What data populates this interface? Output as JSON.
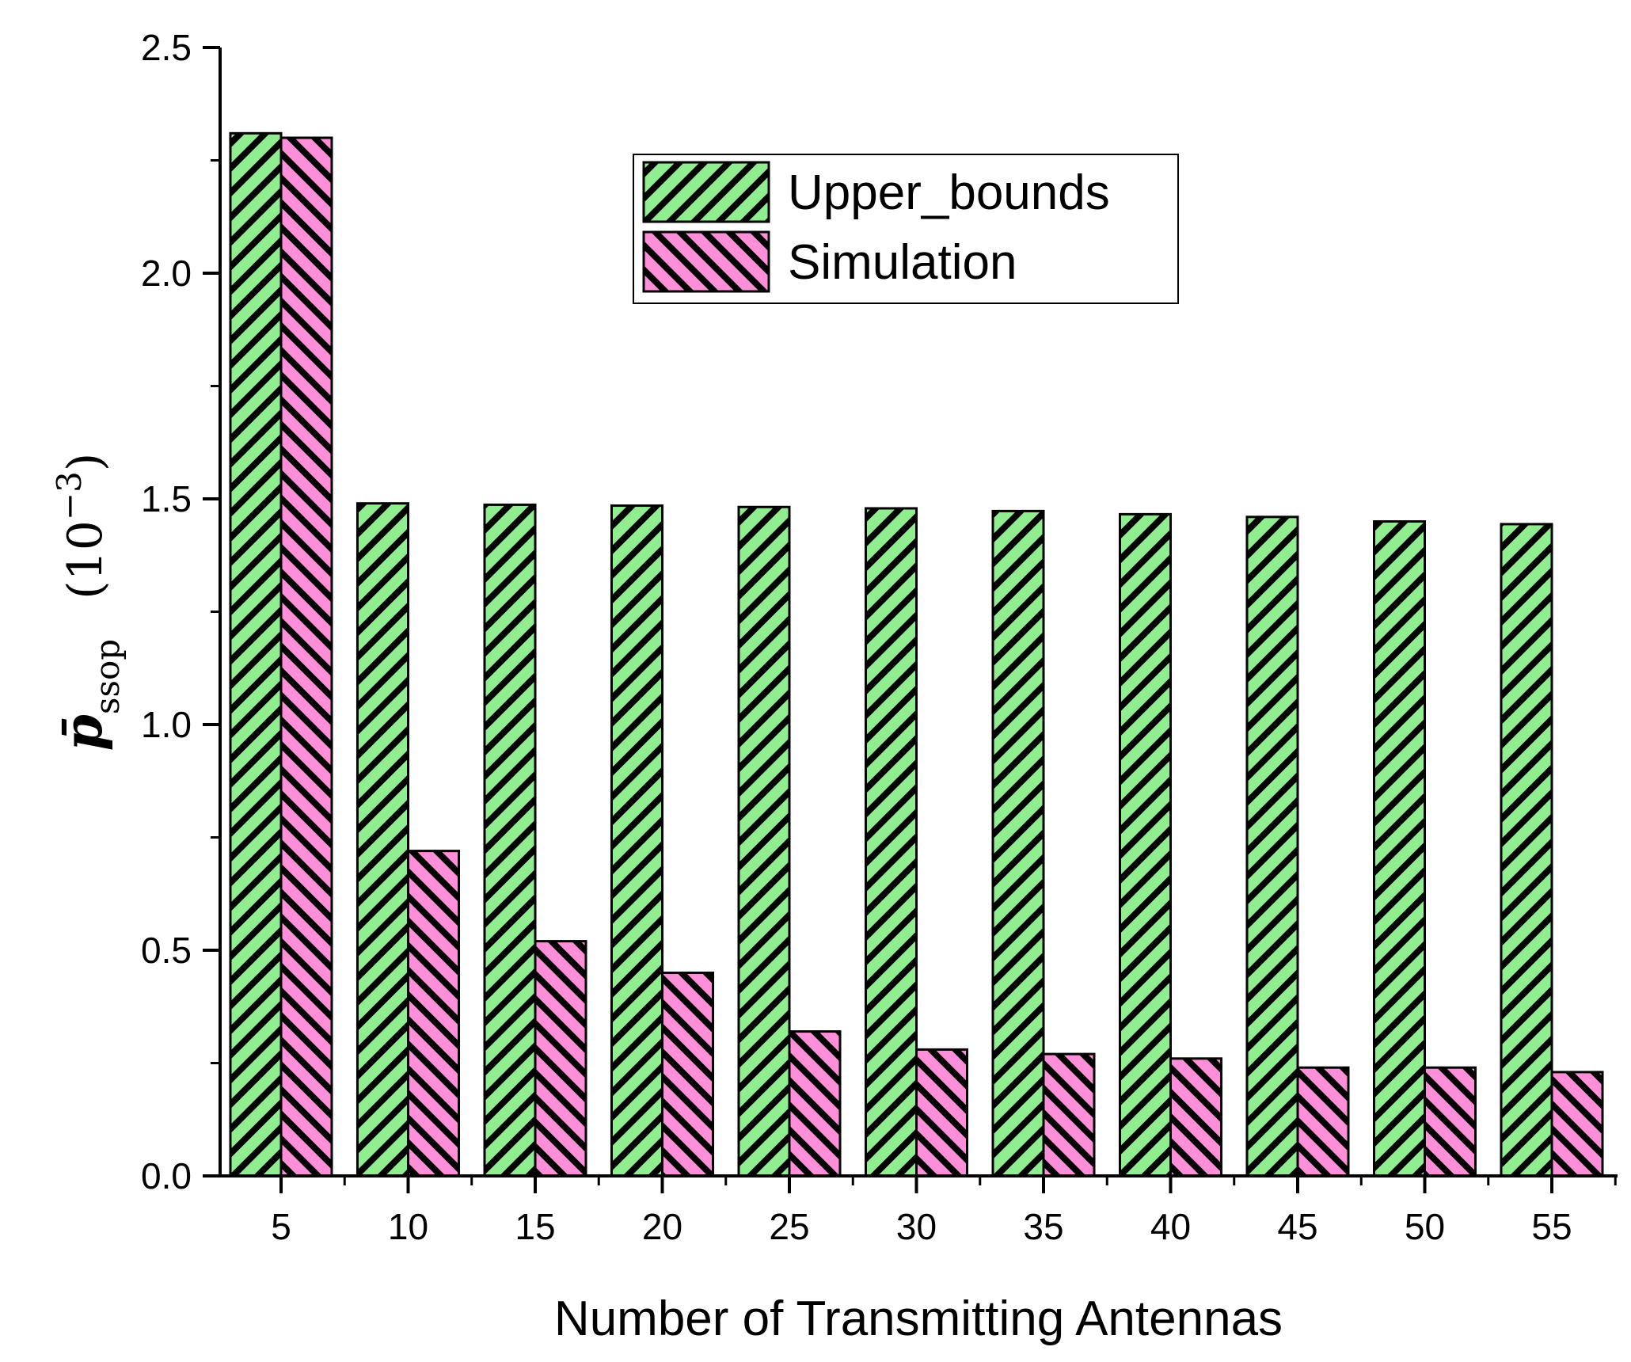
{
  "chart_data": {
    "type": "bar",
    "categories": [
      "5",
      "10",
      "15",
      "20",
      "25",
      "30",
      "35",
      "40",
      "45",
      "50",
      "55"
    ],
    "series": [
      {
        "name": "Upper_bounds",
        "values": [
          2.31,
          1.49,
          1.487,
          1.485,
          1.482,
          1.479,
          1.473,
          1.466,
          1.46,
          1.45,
          1.444
        ],
        "fill": "#90ee90",
        "hatch": "forward"
      },
      {
        "name": "Simulation",
        "values": [
          2.3,
          0.72,
          0.52,
          0.45,
          0.32,
          0.28,
          0.27,
          0.26,
          0.24,
          0.24,
          0.23
        ],
        "fill": "#ff8fd8",
        "hatch": "backward"
      }
    ],
    "xlabel": "Number of Transmitting Antennas",
    "ylabel": {
      "symbol": "p̄",
      "subscript": "ssop",
      "unit": "(10",
      "exponent": "−3",
      "unit_close": ")"
    },
    "ylim": [
      0,
      2.5
    ],
    "yticks": [
      "0.0",
      "0.5",
      "1.0",
      "1.5",
      "2.0",
      "2.5"
    ],
    "grid": false,
    "legend_position": "top-center"
  }
}
